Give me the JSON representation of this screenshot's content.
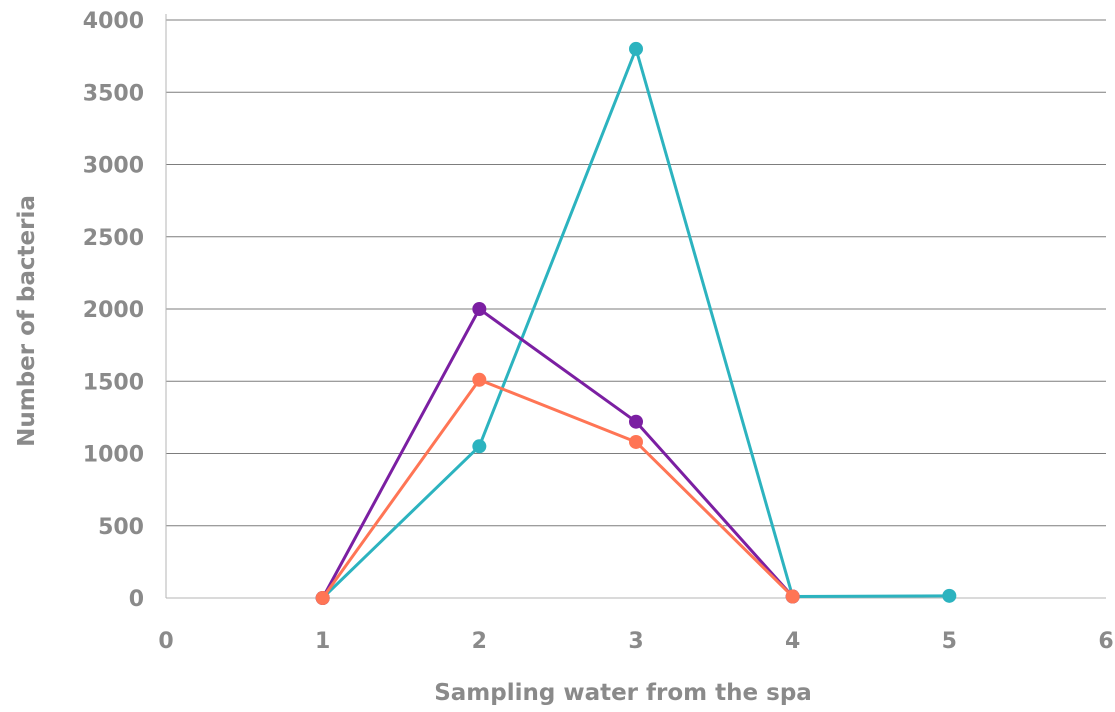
{
  "chart_data": {
    "type": "line",
    "xlabel": "Sampling water from the spa",
    "ylabel": "Number of bacteria",
    "xlim": [
      0,
      6
    ],
    "ylim": [
      0,
      4000
    ],
    "xticks": [
      "0",
      "1",
      "2",
      "3",
      "4",
      "5",
      "6"
    ],
    "yticks": [
      "0",
      "500",
      "1000",
      "1500",
      "2000",
      "2500",
      "3000",
      "3500",
      "4000"
    ],
    "grid": "horizontal",
    "series": [
      {
        "color": "#2cb3bf",
        "points": [
          {
            "x": 1,
            "y": 0
          },
          {
            "x": 2,
            "y": 1050
          },
          {
            "x": 3,
            "y": 3800
          },
          {
            "x": 4,
            "y": 10
          },
          {
            "x": 5,
            "y": 15
          }
        ]
      },
      {
        "color": "#7b1fa2",
        "points": [
          {
            "x": 1,
            "y": 0
          },
          {
            "x": 2,
            "y": 2000
          },
          {
            "x": 3,
            "y": 1220
          },
          {
            "x": 4,
            "y": 10
          }
        ]
      },
      {
        "color": "#ff7555",
        "points": [
          {
            "x": 1,
            "y": 0
          },
          {
            "x": 2,
            "y": 1510
          },
          {
            "x": 3,
            "y": 1080
          },
          {
            "x": 4,
            "y": 10
          }
        ]
      }
    ],
    "draw_order": [
      0,
      1,
      2
    ]
  }
}
